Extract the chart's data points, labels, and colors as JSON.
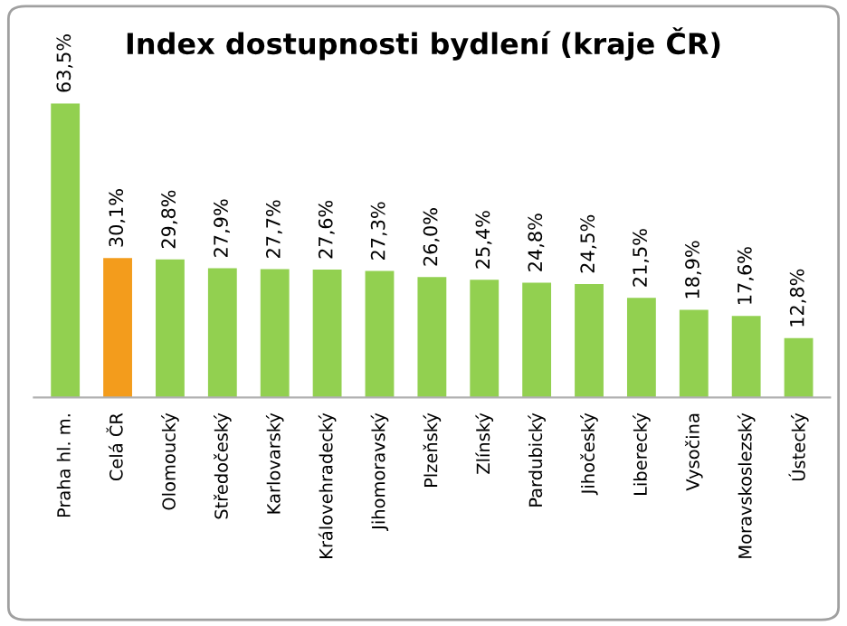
{
  "chart_data": {
    "type": "bar",
    "title": "Index dostupnosti bydlení (kraje ČR)",
    "categories": [
      "Praha hl. m.",
      "Celá ČR",
      "Olomoucký",
      "Středočeský",
      "Karlovarský",
      "Královehradecký",
      "Jihomoravský",
      "Plzeňský",
      "Zlínský",
      "Pardubický",
      "Jihočeský",
      "Liberecký",
      "Vysočina",
      "Moravskoslezský",
      "Ústecký"
    ],
    "values": [
      63.5,
      30.1,
      29.8,
      27.9,
      27.7,
      27.6,
      27.3,
      26.0,
      25.4,
      24.8,
      24.5,
      21.5,
      18.9,
      17.6,
      12.8
    ],
    "value_labels": [
      "63,5%",
      "30,1%",
      "29,8%",
      "27,9%",
      "27,7%",
      "27,6%",
      "27,3%",
      "26,0%",
      "25,4%",
      "24,8%",
      "24,5%",
      "21,5%",
      "18,9%",
      "17,6%",
      "12,8%"
    ],
    "colors": [
      "#92d050",
      "#f39c1c",
      "#92d050",
      "#92d050",
      "#92d050",
      "#92d050",
      "#92d050",
      "#92d050",
      "#92d050",
      "#92d050",
      "#92d050",
      "#92d050",
      "#92d050",
      "#92d050",
      "#92d050"
    ],
    "grid": false,
    "legend": false
  }
}
